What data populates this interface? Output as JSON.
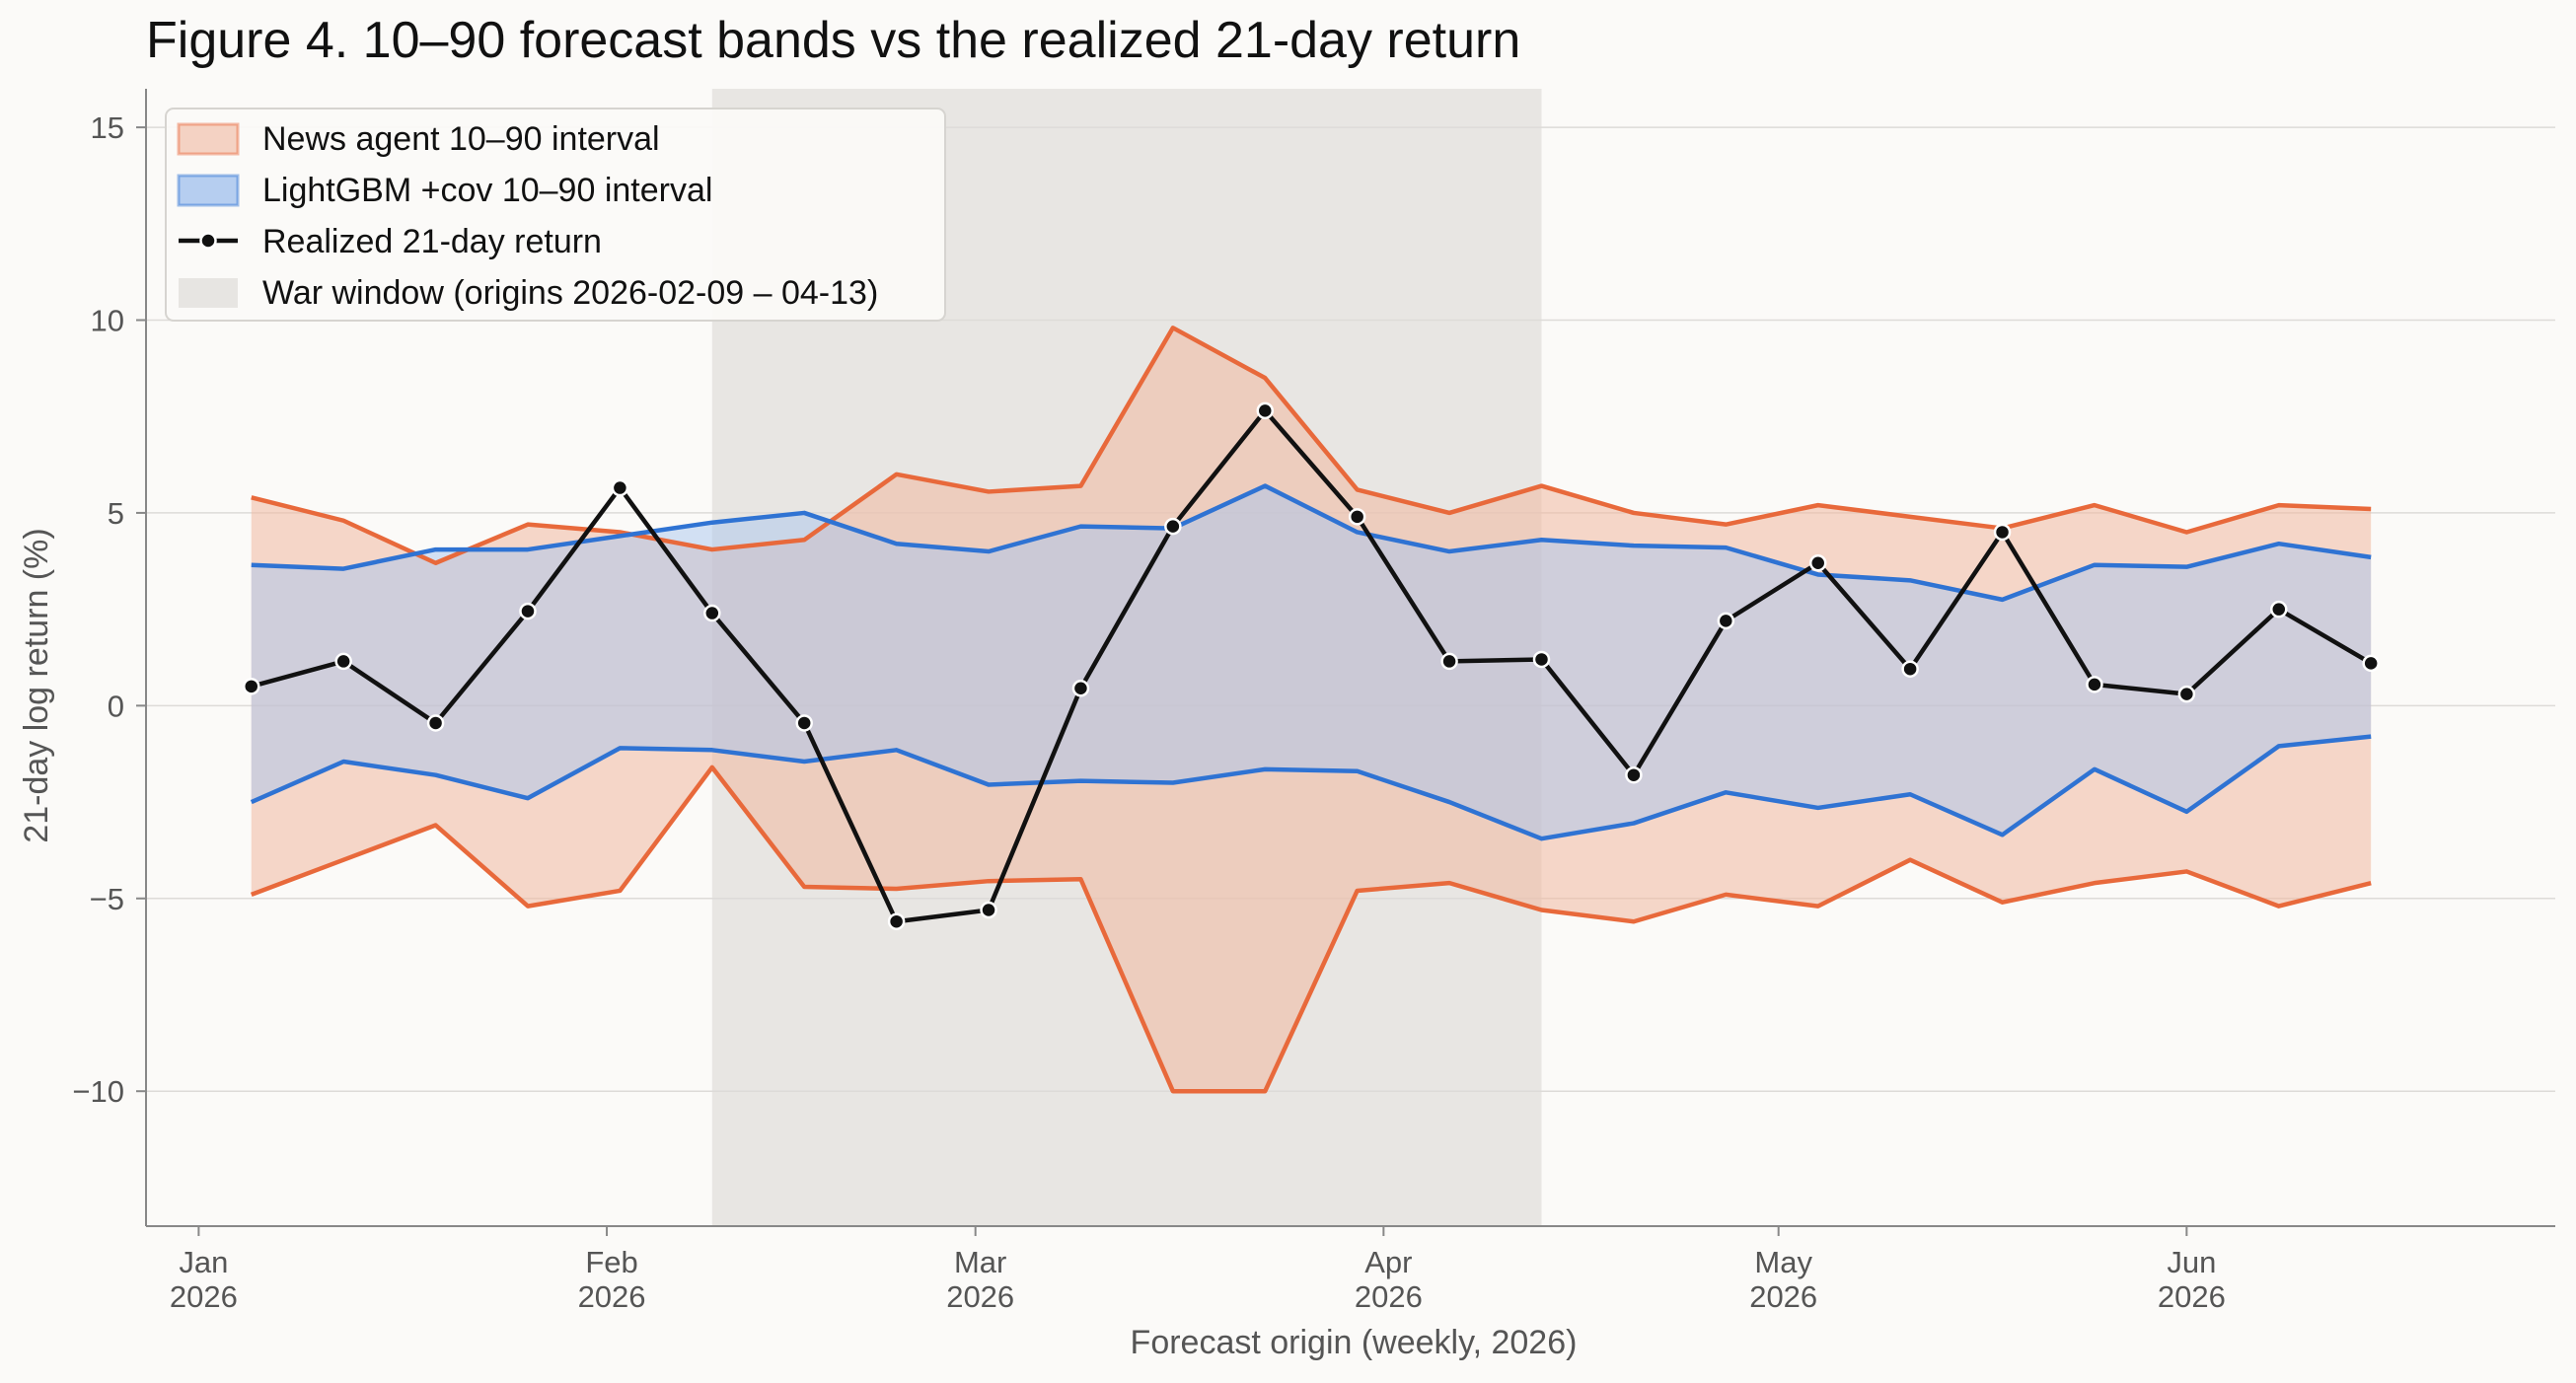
{
  "chart_data": {
    "type": "line",
    "title": "Figure 4.  10–90 forecast bands vs the realized 21-day return",
    "xlabel": "Forecast origin (weekly, 2026)",
    "ylabel": "21-day log return  (%)",
    "ylim": [
      -13.5,
      16.0
    ],
    "xlim": [
      "2025-12-28",
      "2026-06-29"
    ],
    "yticks": [
      15,
      10,
      5,
      0,
      -5,
      -10
    ],
    "ytick_labels": [
      "15",
      "10",
      "5",
      "0",
      "−5",
      "−10"
    ],
    "xticks": [
      {
        "date": "2026-01-01",
        "line1": "Jan",
        "line2": "2026"
      },
      {
        "date": "2026-02-01",
        "line1": "Feb",
        "line2": "2026"
      },
      {
        "date": "2026-03-01",
        "line1": "Mar",
        "line2": "2026"
      },
      {
        "date": "2026-04-01",
        "line1": "Apr",
        "line2": "2026"
      },
      {
        "date": "2026-05-01",
        "line1": "May",
        "line2": "2026"
      },
      {
        "date": "2026-06-01",
        "line1": "Jun",
        "line2": "2026"
      }
    ],
    "grid": "horizontal",
    "legend_position": "top-left",
    "x": [
      "2026-01-05",
      "2026-01-12",
      "2026-01-19",
      "2026-01-26",
      "2026-02-02",
      "2026-02-09",
      "2026-02-16",
      "2026-02-23",
      "2026-03-02",
      "2026-03-09",
      "2026-03-16",
      "2026-03-23",
      "2026-03-30",
      "2026-04-06",
      "2026-04-13",
      "2026-04-20",
      "2026-04-27",
      "2026-05-04",
      "2026-05-11",
      "2026-05-18",
      "2026-05-25",
      "2026-06-01",
      "2026-06-08",
      "2026-06-15"
    ],
    "series": [
      {
        "name": "News agent 10–90 interval",
        "kind": "band",
        "color": "#e8693b",
        "fill": "#f0b8a0",
        "lower": [
          -4.9,
          -4.0,
          -3.1,
          -5.2,
          -4.8,
          -1.6,
          -4.7,
          -4.75,
          -4.55,
          -4.5,
          -10.0,
          -10.0,
          -4.8,
          -4.6,
          -5.3,
          -5.6,
          -4.9,
          -5.2,
          -4.0,
          -5.1,
          -4.6,
          -4.3,
          -5.2,
          -4.6
        ],
        "upper": [
          5.4,
          4.8,
          3.7,
          4.7,
          4.5,
          4.05,
          4.3,
          6.0,
          5.55,
          5.7,
          9.8,
          8.5,
          5.6,
          5.0,
          5.7,
          5.0,
          4.7,
          5.2,
          4.9,
          4.6,
          5.2,
          4.5,
          5.2,
          5.1
        ]
      },
      {
        "name": "LightGBM +cov 10–90 interval",
        "kind": "band",
        "color": "#2f73d3",
        "fill": "#a9c6ee",
        "lower": [
          -2.5,
          -1.45,
          -1.8,
          -2.4,
          -1.1,
          -1.15,
          -1.45,
          -1.15,
          -2.05,
          -1.95,
          -2.0,
          -1.65,
          -1.7,
          -2.5,
          -3.45,
          -3.05,
          -2.25,
          -2.65,
          -2.3,
          -3.35,
          -1.65,
          -2.75,
          -1.05,
          -0.8
        ],
        "upper": [
          3.65,
          3.55,
          4.05,
          4.05,
          4.4,
          4.75,
          5.0,
          4.2,
          4.0,
          4.65,
          4.6,
          5.7,
          4.5,
          4.0,
          4.3,
          4.15,
          4.1,
          3.4,
          3.25,
          2.75,
          3.65,
          3.6,
          4.2,
          3.85
        ]
      },
      {
        "name": "Realized 21-day return",
        "kind": "line",
        "color": "#111111",
        "values": [
          0.5,
          1.15,
          -0.45,
          2.45,
          5.65,
          2.4,
          -0.45,
          -5.6,
          -5.3,
          0.45,
          4.65,
          7.65,
          4.9,
          1.15,
          1.2,
          -1.8,
          2.2,
          3.7,
          0.95,
          4.5,
          0.55,
          0.3,
          2.5,
          1.1
        ]
      }
    ],
    "shaded_regions": [
      {
        "name": "War window (origins 2026-02-09 – 04-13)",
        "start": "2026-02-09",
        "end": "2026-04-13",
        "color": "#e4e2df"
      }
    ]
  }
}
